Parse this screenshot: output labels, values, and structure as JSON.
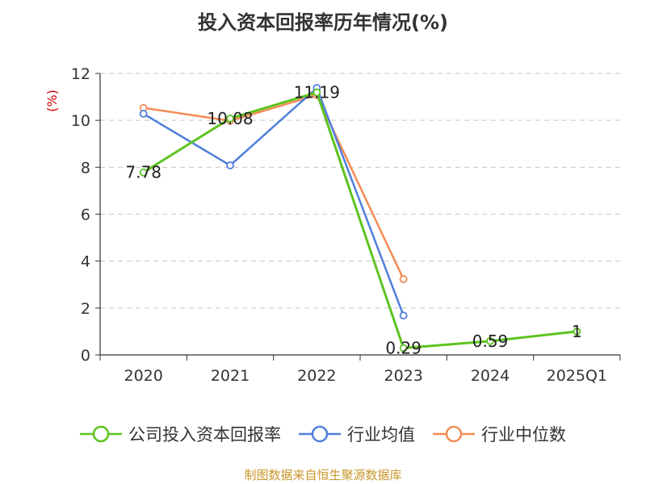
{
  "title": "投入资本回报率历年情况(%)",
  "source": "制图数据来自恒生聚源数据库",
  "chart_data": {
    "type": "line",
    "title": "投入资本回报率历年情况(%)",
    "ylabel": "(%)",
    "xlabel": "",
    "categories": [
      "2020",
      "2021",
      "2022",
      "2023",
      "2024",
      "2025Q1"
    ],
    "ylim": [
      0,
      12
    ],
    "yticks": [
      0,
      2,
      4,
      6,
      8,
      10,
      12
    ],
    "grid": true,
    "legend": "bottom",
    "series": [
      {
        "name": "公司投入资本回报率",
        "color": "#5dc31f",
        "values": [
          7.78,
          10.08,
          11.19,
          0.29,
          0.59,
          1
        ],
        "labels": [
          "7.78",
          "10.08",
          "11.19",
          "0.29",
          "0.59",
          "1"
        ]
      },
      {
        "name": "行业均值",
        "color": "#4f7fdb",
        "values": [
          10.28,
          8.08,
          11.38,
          1.68,
          null,
          null
        ]
      },
      {
        "name": "行业中位数",
        "color": "#f48b56",
        "values": [
          10.53,
          9.98,
          11.08,
          3.23,
          null,
          null
        ]
      }
    ]
  }
}
